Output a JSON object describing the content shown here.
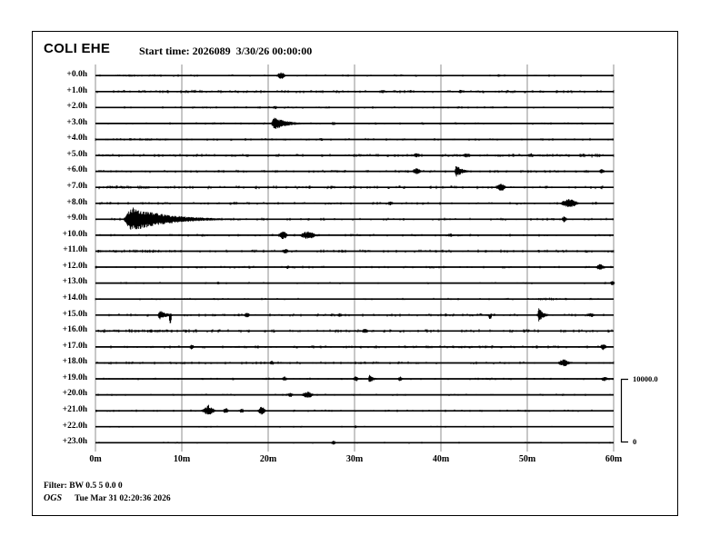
{
  "header": {
    "station": "COLI EHE",
    "start_time": "Start time: 2026089  3/30/26 00:00:00"
  },
  "footer": {
    "filter": "Filter: BW 0.5 5 0.0 0",
    "agency": "OGS",
    "timestamp": "Tue Mar 31 02:20:36 2026"
  },
  "colors": {
    "trace": "#000000",
    "grid": "#8f8f8f",
    "border": "#000000",
    "background": "#ffffff"
  },
  "chart_data": {
    "type": "line",
    "subtype": "helicorder-seismogram",
    "title": "COLI EHE",
    "start_time_label": "Start time: 2026089  3/30/26 00:00:00",
    "x_axis": {
      "tick_labels": [
        "0m",
        "10m",
        "20m",
        "30m",
        "40m",
        "50m",
        "60m"
      ],
      "minutes_per_line": 60,
      "range_min": [
        0,
        60
      ],
      "grid": true
    },
    "y_axis": {
      "hours": 24,
      "first_label": "+0.0h",
      "last_label": "+23.0h"
    },
    "scale_bar": {
      "top_label": "10000.0",
      "bottom_label": "0"
    },
    "rows": [
      {
        "label": "+0.0h",
        "noise": {
          "d": 0.12,
          "a": 1.0
        },
        "events": [
          {
            "m": 20.8,
            "dur": 1.4,
            "amp": 3.4,
            "shape": "burst"
          },
          {
            "m": 0.3,
            "dur": 8,
            "amp": 1.2,
            "shape": "patch"
          },
          {
            "m": 46.5,
            "dur": 0.4,
            "amp": 1.5,
            "shape": "spike"
          }
        ]
      },
      {
        "label": "+1.0h",
        "noise": {
          "d": 0.26,
          "a": 1.3
        },
        "events": [
          {
            "m": 33,
            "dur": 0.5,
            "amp": 2,
            "shape": "spike"
          },
          {
            "m": 42,
            "dur": 0.5,
            "amp": 1.8,
            "shape": "spike"
          }
        ]
      },
      {
        "label": "+2.0h",
        "noise": {
          "d": 0.15,
          "a": 1.0
        },
        "events": [
          {
            "m": 20.5,
            "dur": 0.6,
            "amp": 1.8,
            "shape": "spike"
          },
          {
            "m": 11,
            "dur": 3,
            "amp": 1.2,
            "shape": "patch"
          }
        ]
      },
      {
        "label": "+3.0h",
        "noise": {
          "d": 0.12,
          "a": 1.0
        },
        "events": [
          {
            "m": 20.3,
            "dur": 5.2,
            "amp": 7,
            "shape": "quake"
          },
          {
            "m": 27.3,
            "dur": 0.5,
            "amp": 2,
            "shape": "spike"
          }
        ]
      },
      {
        "label": "+4.0h",
        "noise": {
          "d": 0.17,
          "a": 1.1
        },
        "events": [
          {
            "m": 0.4,
            "dur": 8,
            "amp": 1.5,
            "shape": "patch"
          },
          {
            "m": 26,
            "dur": 0.4,
            "amp": 1.6,
            "shape": "spike"
          }
        ]
      },
      {
        "label": "+5.0h",
        "noise": {
          "d": 0.21,
          "a": 1.3
        },
        "events": [
          {
            "m": 36.6,
            "dur": 1.2,
            "amp": 2.4,
            "shape": "burst"
          },
          {
            "m": 42.3,
            "dur": 1.4,
            "amp": 2.2,
            "shape": "burst"
          },
          {
            "m": 49.8,
            "dur": 1.2,
            "amp": 2.2,
            "shape": "burst"
          },
          {
            "m": 55.8,
            "dur": 3,
            "amp": 2.4,
            "shape": "patch"
          }
        ]
      },
      {
        "label": "+6.0h",
        "noise": {
          "d": 0.17,
          "a": 1.2
        },
        "events": [
          {
            "m": 36.5,
            "dur": 1.4,
            "amp": 3.4,
            "shape": "burst"
          },
          {
            "m": 41.6,
            "dur": 2.4,
            "amp": 7,
            "shape": "quake"
          },
          {
            "m": 58.2,
            "dur": 0.9,
            "amp": 2.4,
            "shape": "burst"
          }
        ]
      },
      {
        "label": "+7.0h",
        "noise": {
          "d": 0.23,
          "a": 1.4
        },
        "events": [
          {
            "m": 0.3,
            "dur": 9,
            "amp": 1.7,
            "shape": "patch"
          },
          {
            "m": 46.2,
            "dur": 1.5,
            "amp": 3.8,
            "shape": "burst"
          }
        ]
      },
      {
        "label": "+8.0h",
        "noise": {
          "d": 0.19,
          "a": 1.2
        },
        "events": [
          {
            "m": 33.7,
            "dur": 0.9,
            "amp": 2.2,
            "shape": "burst"
          },
          {
            "m": 53.6,
            "dur": 2.6,
            "amp": 4.4,
            "shape": "burst"
          }
        ]
      },
      {
        "label": "+9.0h",
        "noise": {
          "d": 0.17,
          "a": 1.2
        },
        "events": [
          {
            "m": 3.2,
            "dur": 14,
            "amp": 13,
            "shape": "quake"
          },
          {
            "m": 54,
            "dur": 0.5,
            "amp": 3.2,
            "shape": "spike"
          }
        ]
      },
      {
        "label": "+10.0h",
        "noise": {
          "d": 0.15,
          "a": 1.1
        },
        "events": [
          {
            "m": 21,
            "dur": 1.4,
            "amp": 4.2,
            "shape": "burst"
          },
          {
            "m": 23.4,
            "dur": 2.4,
            "amp": 4.2,
            "shape": "burst"
          },
          {
            "m": 40.8,
            "dur": 0.6,
            "amp": 1.8,
            "shape": "spike"
          }
        ]
      },
      {
        "label": "+11.0h",
        "noise": {
          "d": 0.23,
          "a": 1.3
        },
        "events": [
          {
            "m": 0.4,
            "dur": 9,
            "amp": 1.8,
            "shape": "patch"
          },
          {
            "m": 21.5,
            "dur": 1,
            "amp": 2.6,
            "shape": "burst"
          }
        ]
      },
      {
        "label": "+12.0h",
        "noise": {
          "d": 0.17,
          "a": 1.1
        },
        "events": [
          {
            "m": 22,
            "dur": 0.5,
            "amp": 1.8,
            "shape": "spike"
          },
          {
            "m": 57.8,
            "dur": 1.3,
            "amp": 3.2,
            "shape": "burst"
          }
        ]
      },
      {
        "label": "+13.0h",
        "noise": {
          "d": 0.08,
          "a": 0.9
        },
        "events": [
          {
            "m": 14,
            "dur": 0.4,
            "amp": 1.5,
            "shape": "spike"
          },
          {
            "m": 59.6,
            "dur": 0.5,
            "amp": 2.6,
            "shape": "spike"
          }
        ]
      },
      {
        "label": "+14.0h",
        "noise": {
          "d": 0.11,
          "a": 0.9
        },
        "events": [
          {
            "m": 51.3,
            "dur": 2.2,
            "amp": 1.7,
            "shape": "patch"
          }
        ]
      },
      {
        "label": "+15.0h",
        "noise": {
          "d": 0.19,
          "a": 1.3
        },
        "events": [
          {
            "m": 7.2,
            "dur": 3,
            "amp": 5,
            "shape": "quake"
          },
          {
            "m": 8.5,
            "dur": 0.35,
            "amp": 9,
            "shape": "downspike"
          },
          {
            "m": 17.1,
            "dur": 0.9,
            "amp": 2.8,
            "shape": "burst"
          },
          {
            "m": 27.9,
            "dur": 0.8,
            "amp": 2.2,
            "shape": "burst"
          },
          {
            "m": 45.5,
            "dur": 0.4,
            "amp": 5,
            "shape": "downspike"
          },
          {
            "m": 51.2,
            "dur": 1.8,
            "amp": 8,
            "shape": "quake"
          },
          {
            "m": 56.8,
            "dur": 1.2,
            "amp": 2.2,
            "shape": "burst"
          }
        ]
      },
      {
        "label": "+16.0h",
        "noise": {
          "d": 0.23,
          "a": 1.4
        },
        "events": [
          {
            "m": 0.4,
            "dur": 8,
            "amp": 1.8,
            "shape": "patch"
          },
          {
            "m": 30.7,
            "dur": 1,
            "amp": 2.6,
            "shape": "burst"
          }
        ]
      },
      {
        "label": "+17.0h",
        "noise": {
          "d": 0.21,
          "a": 1.2
        },
        "events": [
          {
            "m": 10.9,
            "dur": 0.5,
            "amp": 2.6,
            "shape": "spike"
          },
          {
            "m": 58.3,
            "dur": 1,
            "amp": 3.2,
            "shape": "burst"
          }
        ]
      },
      {
        "label": "+18.0h",
        "noise": {
          "d": 0.19,
          "a": 1.2
        },
        "events": [
          {
            "m": 20.2,
            "dur": 0.5,
            "amp": 2.2,
            "shape": "spike"
          },
          {
            "m": 53.4,
            "dur": 1.7,
            "amp": 3.8,
            "shape": "burst"
          }
        ]
      },
      {
        "label": "+19.0h",
        "noise": {
          "d": 0.13,
          "a": 1.0
        },
        "events": [
          {
            "m": 21.5,
            "dur": 0.8,
            "amp": 2.6,
            "shape": "burst"
          },
          {
            "m": 29.7,
            "dur": 0.9,
            "amp": 2.8,
            "shape": "burst"
          },
          {
            "m": 31.6,
            "dur": 1.5,
            "amp": 5.2,
            "shape": "quake"
          },
          {
            "m": 34.9,
            "dur": 0.7,
            "amp": 2.6,
            "shape": "burst"
          },
          {
            "m": 58.4,
            "dur": 1.1,
            "amp": 2.6,
            "shape": "burst"
          }
        ]
      },
      {
        "label": "+20.0h",
        "noise": {
          "d": 0.11,
          "a": 0.9
        },
        "events": [
          {
            "m": 22.2,
            "dur": 0.8,
            "amp": 2.4,
            "shape": "burst"
          },
          {
            "m": 23.7,
            "dur": 1.7,
            "amp": 3.4,
            "shape": "burst"
          },
          {
            "m": 54,
            "dur": 0.3,
            "amp": 1.7,
            "shape": "spike"
          }
        ]
      },
      {
        "label": "+21.0h",
        "noise": {
          "d": 0.14,
          "a": 1.0
        },
        "events": [
          {
            "m": 12.1,
            "dur": 2,
            "amp": 4.2,
            "shape": "burst"
          },
          {
            "m": 12.9,
            "dur": 0.3,
            "amp": 7,
            "shape": "spike"
          },
          {
            "m": 14.8,
            "dur": 0.6,
            "amp": 3,
            "shape": "spike"
          },
          {
            "m": 16.7,
            "dur": 0.5,
            "amp": 2.4,
            "shape": "spike"
          },
          {
            "m": 18.7,
            "dur": 1.1,
            "amp": 4.4,
            "shape": "burst"
          }
        ]
      },
      {
        "label": "+22.0h",
        "noise": {
          "d": 0.07,
          "a": 0.8
        },
        "events": [
          {
            "m": 30,
            "dur": 0.3,
            "amp": 1.4,
            "shape": "spike"
          }
        ]
      },
      {
        "label": "+23.0h",
        "noise": {
          "d": 0.07,
          "a": 0.8
        },
        "events": [
          {
            "m": 27.3,
            "dur": 0.5,
            "amp": 2.4,
            "shape": "spike"
          }
        ]
      }
    ]
  }
}
